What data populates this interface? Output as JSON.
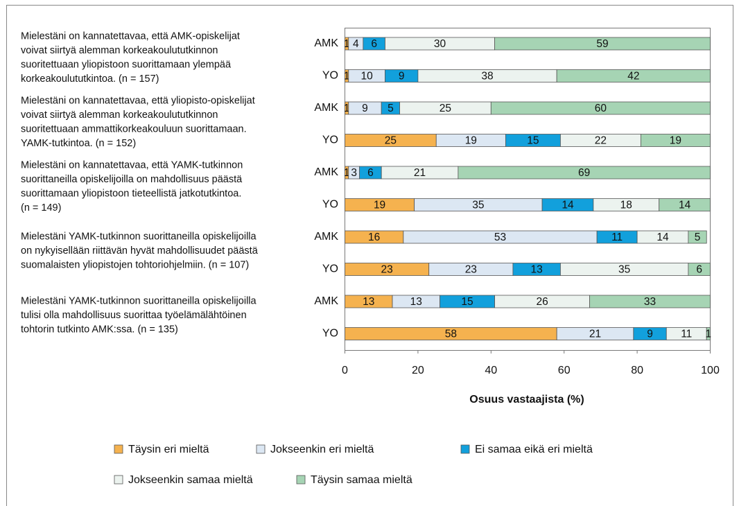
{
  "chart_data": {
    "type": "bar",
    "orientation": "horizontal",
    "stacked": true,
    "xlabel": "Osuus vastaajista (%)",
    "categories": [
      "AMK",
      "YO",
      "AMK",
      "YO",
      "AMK",
      "YO",
      "AMK",
      "YO",
      "AMK",
      "YO"
    ],
    "groups": [
      [
        "Mielestäni on kannatettavaa, että AMK-opiskelijat",
        "voivat siirtyä alemman korkeakoulututkinnon",
        "suoritettuaan yliopistoon suorittamaan ylempää",
        "korkeakoulututkintoa. (n = 157)"
      ],
      [
        "Mielestäni on kannatettavaa, että yliopisto-opiskelijat",
        "voivat siirtyä alemman korkeakoulututkinnon",
        "suoritettuaan ammattikorkeakouluun suorittamaan.",
        "YAMK-tutkintoa. (n = 152)"
      ],
      [
        "Mielestäni on kannatettavaa, että YAMK-tutkinnon",
        "suorittaneilla opiskelijoilla on mahdollisuus päästä",
        "suorittamaan yliopistoon tieteellistä jatkotutkintoa.",
        "(n = 149)"
      ],
      [
        "Mielestäni YAMK-tutkinnon suorittaneilla opiskelijoilla",
        "on nykyisellään riittävän hyvät mahdollisuudet päästä",
        "suomalaisten yliopistojen tohtoriohjelmiin. (n = 107)"
      ],
      [
        "Mielestäni YAMK-tutkinnon suorittaneilla opiskelijoilla",
        "tulisi olla mahdollisuus suorittaa työelämälähtöinen",
        "tohtorin tutkinto AMK:ssa. (n = 135)"
      ]
    ],
    "series": [
      {
        "name": "Täysin eri mieltä",
        "color": "#f5b24f",
        "values": [
          1,
          1,
          1,
          25,
          1,
          19,
          16,
          23,
          13,
          58
        ]
      },
      {
        "name": "Jokseenkin eri mieltä",
        "color": "#dce7f3",
        "values": [
          4,
          10,
          9,
          19,
          3,
          35,
          53,
          23,
          13,
          21
        ]
      },
      {
        "name": "Ei samaa eikä eri mieltä",
        "color": "#12a0dc",
        "values": [
          6,
          9,
          5,
          15,
          6,
          14,
          11,
          13,
          15,
          9
        ]
      },
      {
        "name": "Jokseenkin samaa mieltä",
        "color": "#ecf3ef",
        "values": [
          30,
          38,
          25,
          22,
          21,
          18,
          14,
          35,
          26,
          11
        ]
      },
      {
        "name": "Täysin samaa mieltä",
        "color": "#a6d4b4",
        "values": [
          59,
          42,
          60,
          19,
          69,
          14,
          5,
          6,
          33,
          1
        ]
      }
    ],
    "xlim": [
      0,
      100
    ],
    "xticks": [
      0,
      20,
      40,
      60,
      80,
      100
    ]
  }
}
